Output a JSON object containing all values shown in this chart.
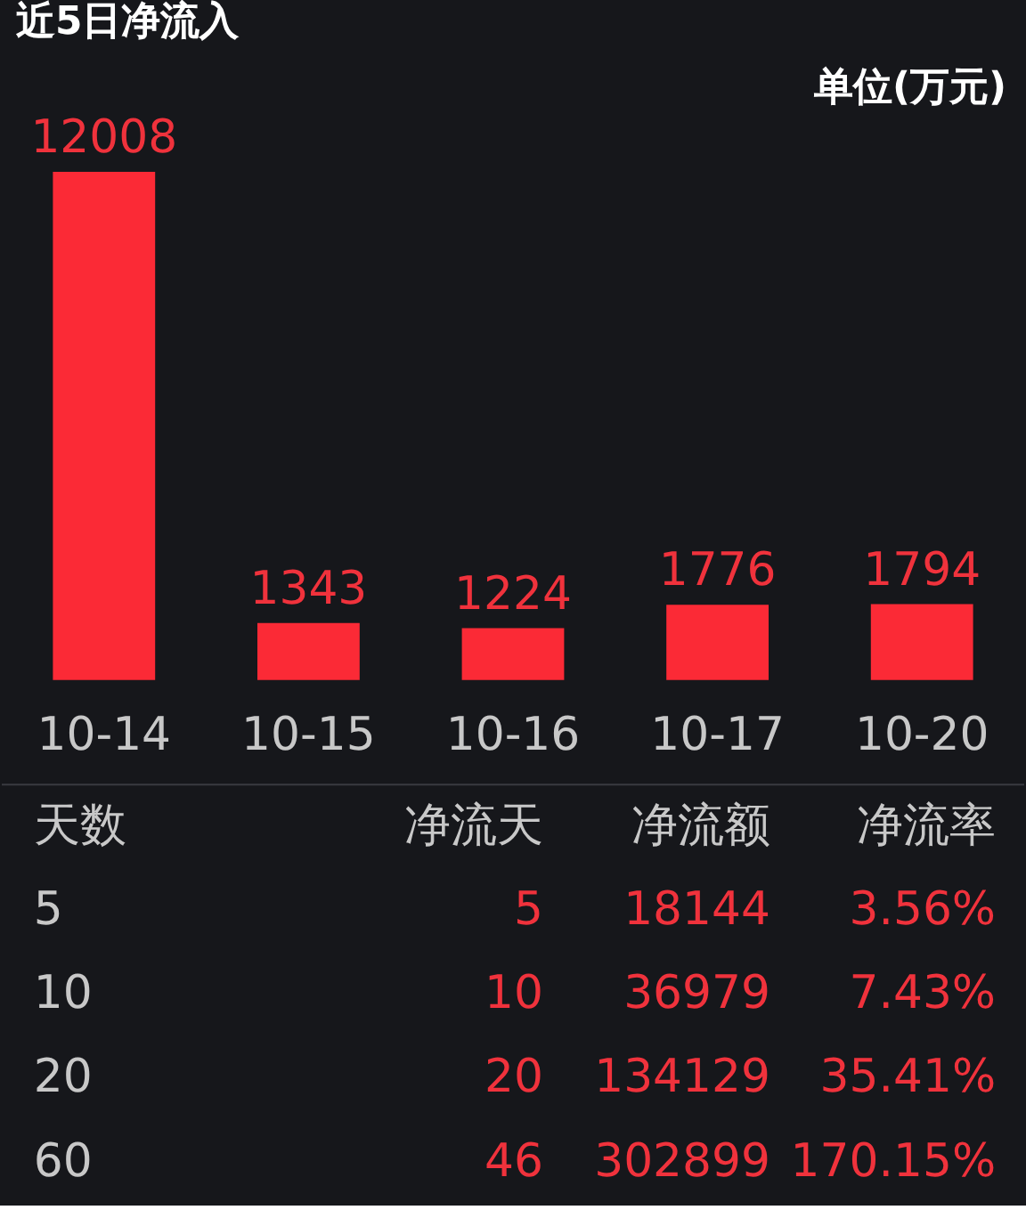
{
  "chart_data": [
    {
      "type": "bar",
      "title": "近5日净流入",
      "ylabel": "单位(万元)",
      "categories": [
        "10-14",
        "10-15",
        "10-16",
        "10-17",
        "10-20"
      ],
      "values": [
        12008,
        1343,
        1224,
        1776,
        1794
      ],
      "color": "#fb2a36",
      "data_labels": true
    },
    {
      "type": "other",
      "categories": [
        "天数",
        "净流天",
        "净流额",
        "净流率"
      ],
      "cell_labels": [
        [
          "5",
          "5",
          "18144",
          "3.56%"
        ],
        [
          "10",
          "10",
          "36979",
          "7.43%"
        ],
        [
          "20",
          "20",
          "134129",
          "35.41%"
        ],
        [
          "60",
          "46",
          "302899",
          "170.15%"
        ]
      ]
    }
  ]
}
